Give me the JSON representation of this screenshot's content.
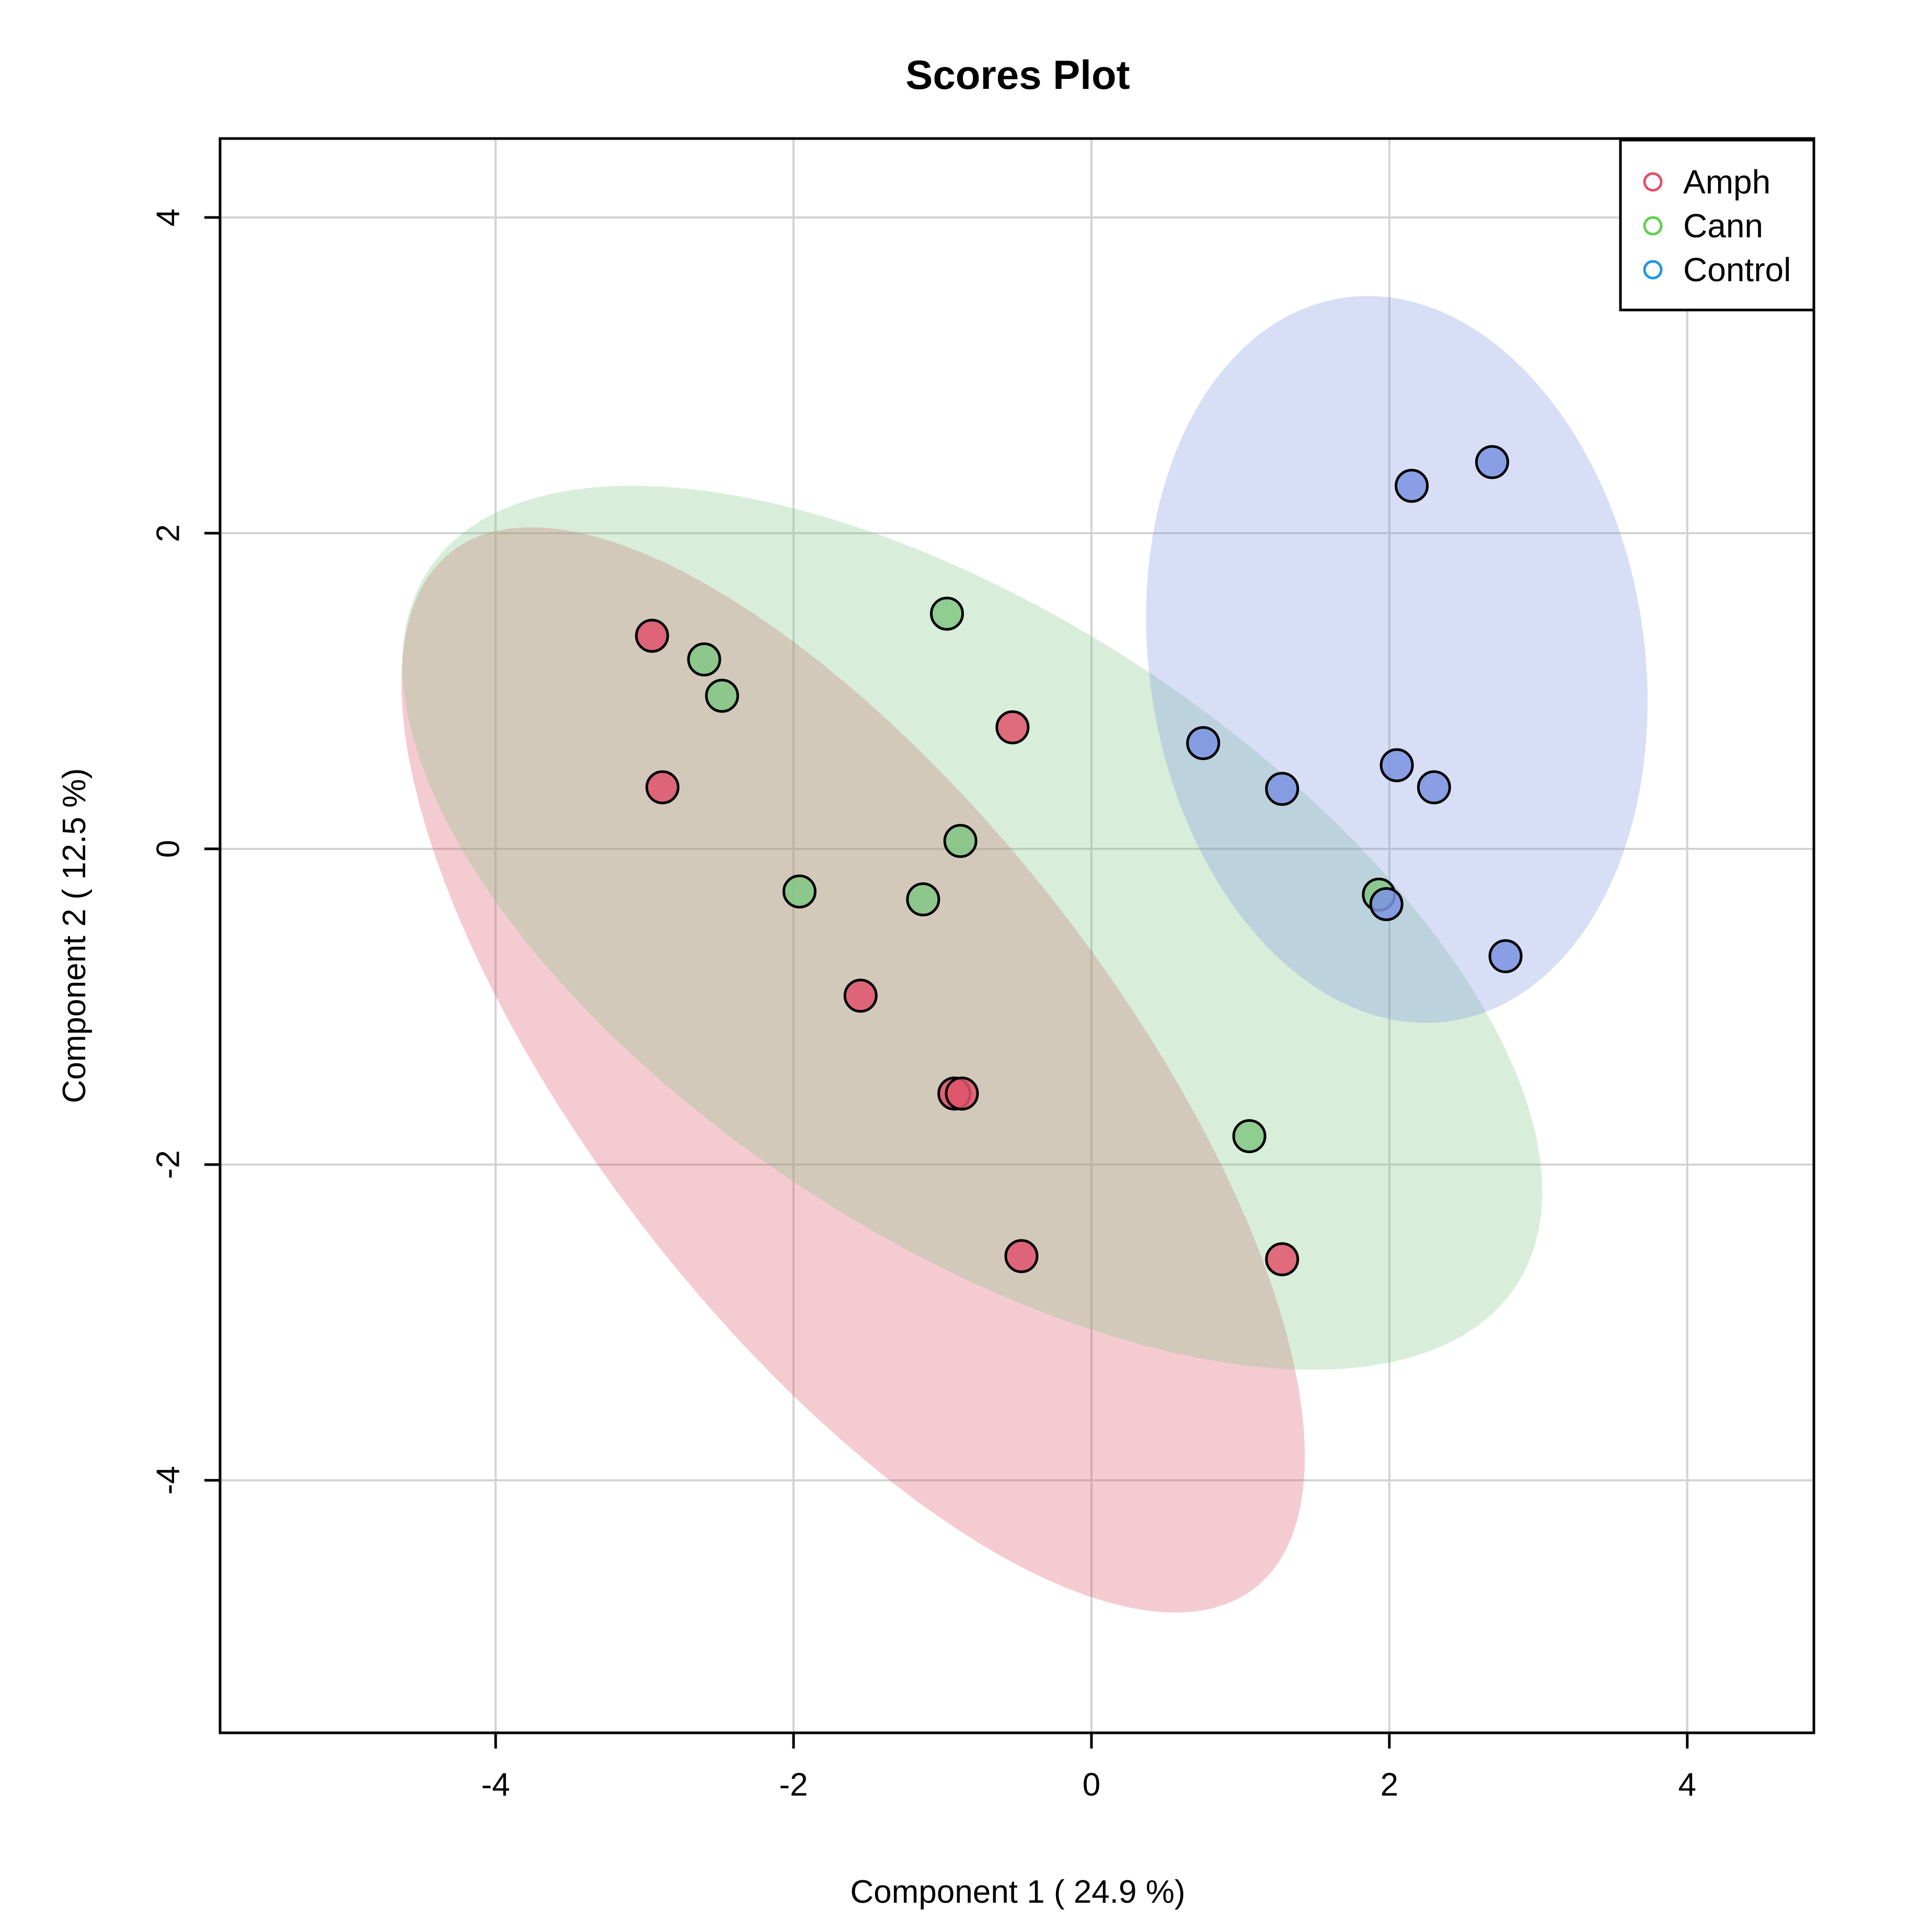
{
  "chart_data": {
    "type": "scatter",
    "title": "Scores Plot",
    "xlabel": "Component 1 ( 24.9 %)",
    "ylabel": "Component 2 ( 12.5 %)",
    "xlim": [
      -5.85,
      4.85
    ],
    "ylim": [
      -5.6,
      4.5
    ],
    "xticks": [
      -4,
      -2,
      0,
      2,
      4
    ],
    "yticks": [
      -4,
      -2,
      0,
      2,
      4
    ],
    "xtick_labels": [
      "-4",
      "-2",
      "0",
      "2",
      "4"
    ],
    "ytick_labels": [
      "-4",
      "-2",
      "0",
      "2",
      "4"
    ],
    "grid": true,
    "legend_position": "top-right",
    "series": [
      {
        "name": "Amph",
        "color": "#DF536B",
        "fill": "#DF536B",
        "ellipse": {
          "center": [
            -1.6,
            -1.4
          ],
          "semi_axes": [
            4.25,
            1.72
          ],
          "angle_deg": -50
        },
        "points": [
          [
            -2.95,
            1.35
          ],
          [
            -2.88,
            0.39
          ],
          [
            -0.53,
            0.77
          ],
          [
            -1.55,
            -0.93
          ],
          [
            -0.92,
            -1.55
          ],
          [
            -0.87,
            -1.55
          ],
          [
            -0.47,
            -2.58
          ],
          [
            1.28,
            -2.6
          ]
        ]
      },
      {
        "name": "Cann",
        "color": "#61D04F",
        "fill": "#81C784",
        "ellipse": {
          "center": [
            -0.8,
            -0.5
          ],
          "semi_axes": [
            4.3,
            2.0
          ],
          "angle_deg": -31
        },
        "points": [
          [
            -2.6,
            1.2
          ],
          [
            -2.48,
            0.97
          ],
          [
            -0.97,
            1.49
          ],
          [
            -0.88,
            0.05
          ],
          [
            -1.96,
            -0.27
          ],
          [
            -1.13,
            -0.32
          ],
          [
            1.06,
            -1.82
          ],
          [
            1.93,
            -0.29
          ]
        ]
      },
      {
        "name": "Control",
        "color": "#2297E6",
        "fill": "#7B93E0",
        "ellipse": {
          "center": [
            2.05,
            1.2
          ],
          "semi_axes": [
            1.66,
            2.32
          ],
          "angle_deg": 10
        },
        "points": [
          [
            2.15,
            2.3
          ],
          [
            2.69,
            2.45
          ],
          [
            0.75,
            0.67
          ],
          [
            1.28,
            0.38
          ],
          [
            2.05,
            0.53
          ],
          [
            2.3,
            0.39
          ],
          [
            1.98,
            -0.35
          ],
          [
            2.78,
            -0.68
          ]
        ]
      }
    ]
  }
}
